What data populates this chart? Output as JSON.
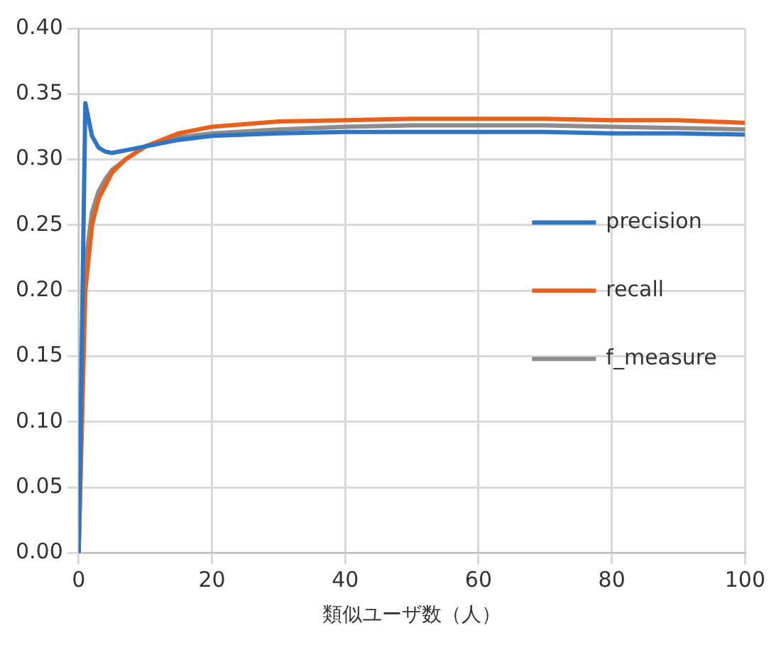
{
  "chart_data": {
    "type": "line",
    "xlabel": "類似ユーザ数（人）",
    "xlim": [
      0,
      100
    ],
    "xticks": [
      0,
      20,
      40,
      60,
      80,
      100
    ],
    "ylim": [
      0,
      0.4
    ],
    "yticks": [
      {
        "value": 0,
        "label": "0.00"
      },
      0.05,
      {
        "value": 0.1,
        "label": "0.10"
      },
      0.15,
      {
        "value": 0.2,
        "label": "0.20"
      },
      0.25,
      {
        "value": 0.3,
        "label": "0.30"
      },
      0.35,
      {
        "value": 0.4,
        "label": "0.40"
      }
    ],
    "grid": true,
    "legend": "right",
    "marker": "none",
    "line_style": "solid",
    "series": [
      {
        "name": "precision",
        "color": "#2e75c6",
        "x": [
          0,
          1,
          2,
          3,
          4,
          5,
          6,
          8,
          10,
          15,
          20,
          30,
          40,
          50,
          60,
          70,
          80,
          90,
          100
        ],
        "values": [
          0,
          0.343,
          0.318,
          0.309,
          0.306,
          0.305,
          0.306,
          0.308,
          0.31,
          0.315,
          0.318,
          0.32,
          0.321,
          0.321,
          0.321,
          0.321,
          0.32,
          0.32,
          0.319
        ]
      },
      {
        "name": "recall",
        "color": "#e8601c",
        "x": [
          0,
          1,
          2,
          3,
          4,
          5,
          7,
          10,
          15,
          20,
          30,
          40,
          50,
          60,
          70,
          80,
          90,
          100
        ],
        "values": [
          0,
          0.2,
          0.25,
          0.27,
          0.28,
          0.29,
          0.3,
          0.31,
          0.32,
          0.325,
          0.329,
          0.33,
          0.331,
          0.331,
          0.331,
          0.33,
          0.33,
          0.328
        ]
      },
      {
        "name": "f_measure",
        "color": "#8c8c8c",
        "x": [
          0,
          1,
          2,
          3,
          4,
          5,
          7,
          10,
          15,
          20,
          30,
          40,
          50,
          60,
          70,
          80,
          90,
          100
        ],
        "values": [
          0,
          0.22,
          0.26,
          0.276,
          0.285,
          0.292,
          0.3,
          0.31,
          0.317,
          0.32,
          0.323,
          0.325,
          0.326,
          0.326,
          0.326,
          0.325,
          0.324,
          0.323
        ]
      }
    ]
  }
}
